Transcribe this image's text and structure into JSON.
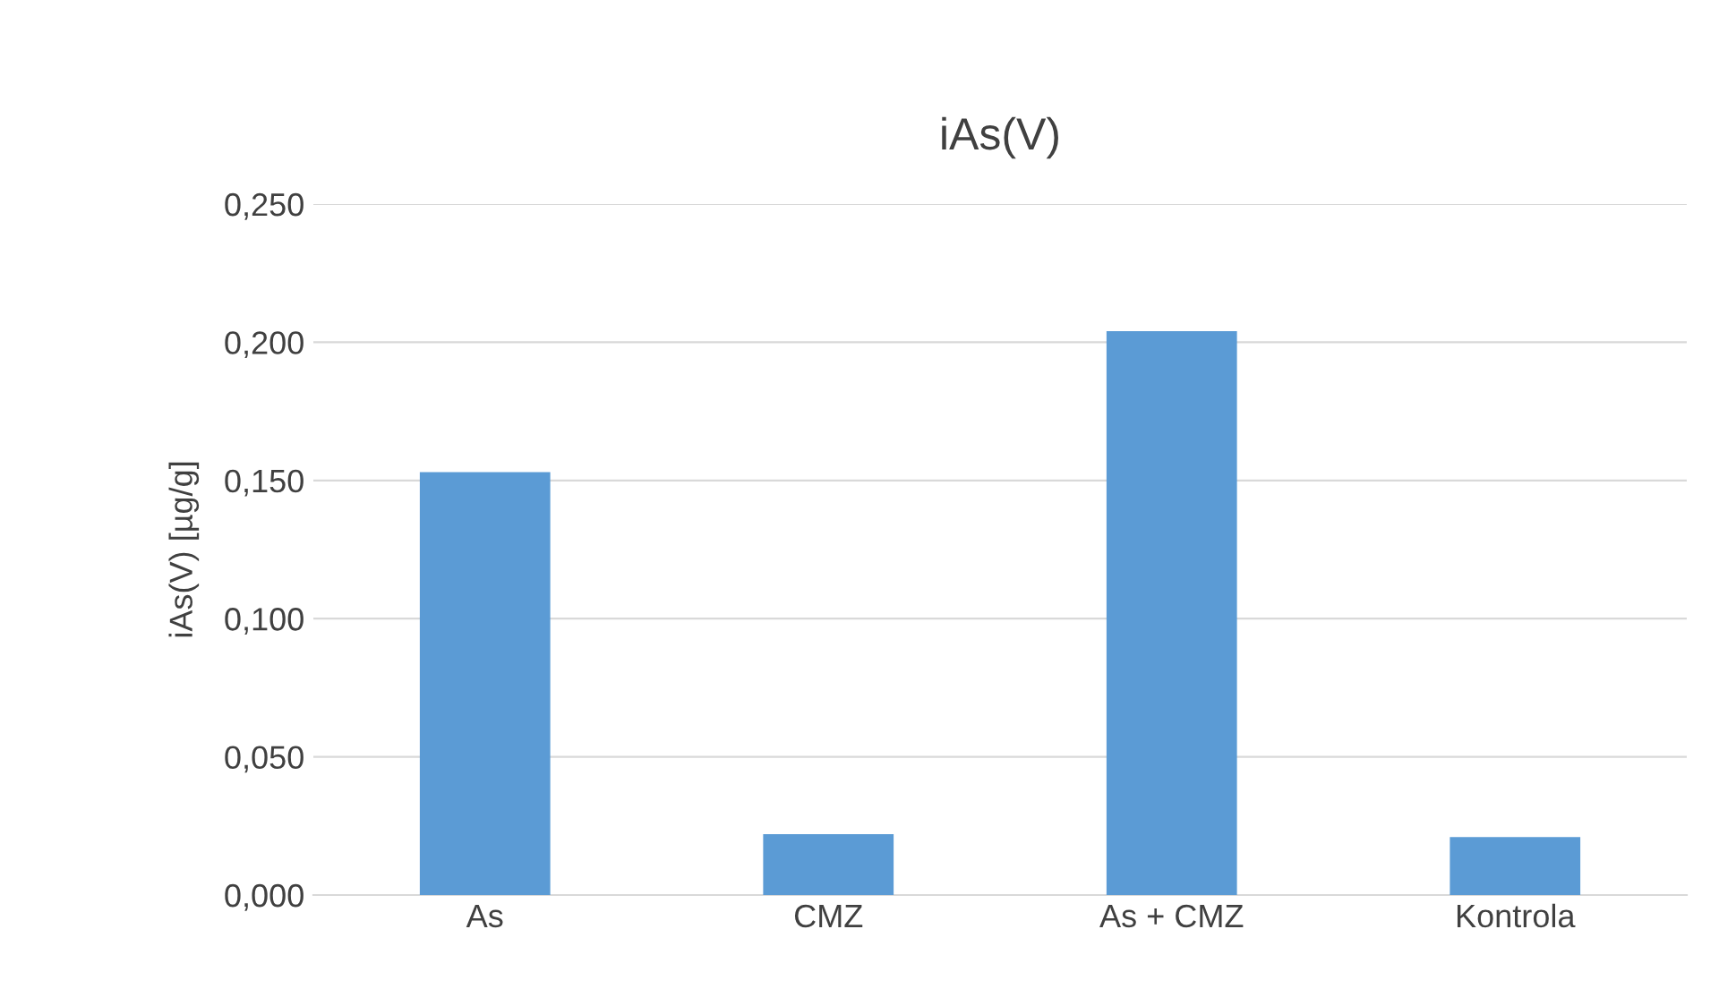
{
  "chart_data": {
    "type": "bar",
    "title": "iAs(V)",
    "ylabel": "iAs(V) [µg/g]",
    "categories": [
      "As",
      "CMZ",
      "As + CMZ",
      "Kontrola"
    ],
    "values": [
      0.153,
      0.022,
      0.204,
      0.021
    ],
    "color": "#5b9bd5",
    "ylim": [
      0,
      0.25
    ],
    "yticks": [
      {
        "value": 0,
        "label": "0,000"
      },
      {
        "value": 0.05,
        "label": "0,050"
      },
      {
        "value": 0.1,
        "label": "0,100"
      },
      {
        "value": 0.15,
        "label": "0,150"
      },
      {
        "value": 0.2,
        "label": "0,200"
      },
      {
        "value": 0.25,
        "label": "0,250"
      }
    ],
    "grid": "y",
    "legend": false
  }
}
